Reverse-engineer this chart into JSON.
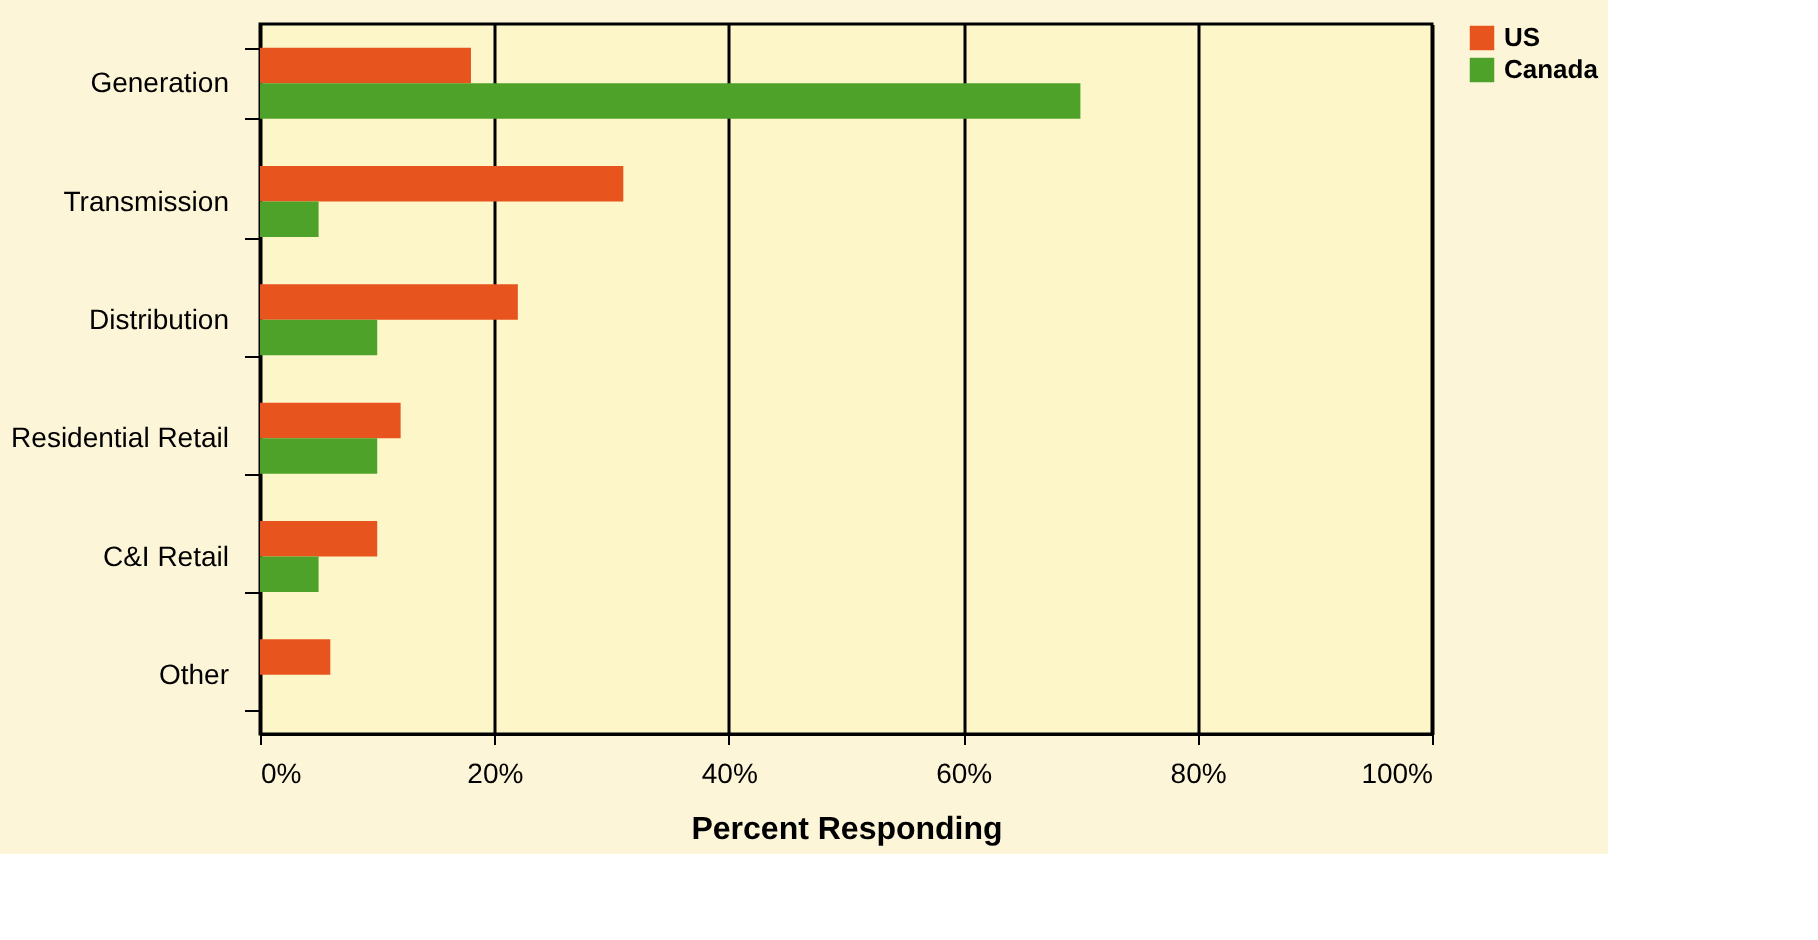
{
  "chart_data": {
    "type": "bar",
    "orientation": "horizontal",
    "xlabel": "Percent Responding",
    "categories": [
      "Generation",
      "Transmission",
      "Distribution",
      "Residential Retail",
      "C&I Retail",
      "Other"
    ],
    "series": [
      {
        "name": "US",
        "color": "#e8541e",
        "values": [
          18,
          31,
          22,
          12,
          10,
          6
        ]
      },
      {
        "name": "Canada",
        "color": "#4ea22a",
        "values": [
          70,
          5,
          10,
          10,
          5,
          null
        ]
      }
    ],
    "xlim": [
      0,
      100
    ],
    "xticks": [
      {
        "value": 0,
        "label": "0%"
      },
      {
        "value": 20,
        "label": "20%"
      },
      {
        "value": 40,
        "label": "40%"
      },
      {
        "value": 60,
        "label": "60%"
      },
      {
        "value": 80,
        "label": "80%"
      },
      {
        "value": 100,
        "label": "100%"
      }
    ],
    "grid": "x",
    "legend": "top right"
  }
}
